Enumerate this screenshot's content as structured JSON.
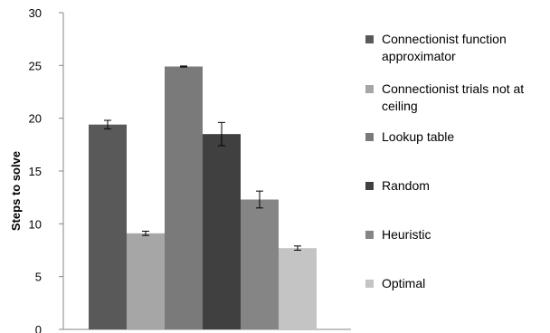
{
  "chart_data": {
    "type": "bar",
    "title": "",
    "xlabel": "",
    "ylabel": "Steps to solve",
    "ylim": [
      0,
      30
    ],
    "yticks": [
      0,
      5,
      10,
      15,
      20,
      25,
      30
    ],
    "grid": false,
    "legend_position": "right",
    "series": [
      {
        "name": "Connectionist function approximator",
        "value": 19.4,
        "error": 0.4,
        "color": "#595959"
      },
      {
        "name": "Connectionist trials not at ceiling",
        "value": 9.1,
        "error": 0.2,
        "color": "#a6a6a6"
      },
      {
        "name": "Lookup table",
        "value": 24.9,
        "error": 0.05,
        "color": "#7a7a7a"
      },
      {
        "name": "Random",
        "value": 18.5,
        "error": 1.1,
        "color": "#404040"
      },
      {
        "name": "Heuristic",
        "value": 12.3,
        "error": 0.8,
        "color": "#858585"
      },
      {
        "name": "Optimal",
        "value": 7.7,
        "error": 0.2,
        "color": "#c4c4c4"
      }
    ]
  }
}
